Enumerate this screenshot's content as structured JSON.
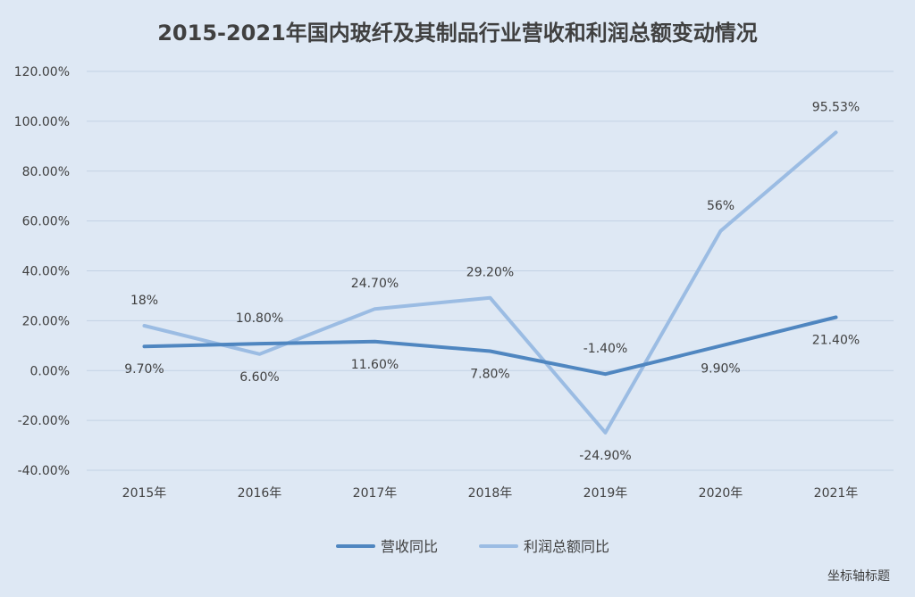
{
  "colors": {
    "background": "#DEE8F4",
    "gridline": "#C3D2E4",
    "text": "#404040",
    "revenue_line": "#4F86C0",
    "profit_line": "#9BBCE3"
  },
  "chart_data": {
    "type": "line",
    "title": "2015-2021年国内玻纤及其制品行业营收和利润总额变动情况",
    "xlabel": "坐标轴标题",
    "ylabel": "",
    "categories": [
      "2015年",
      "2016年",
      "2017年",
      "2018年",
      "2019年",
      "2020年",
      "2021年"
    ],
    "ylim": [
      -40,
      120
    ],
    "yticks": [
      "-40.00%",
      "-20.00%",
      "0.00%",
      "20.00%",
      "40.00%",
      "60.00%",
      "80.00%",
      "100.00%",
      "120.00%"
    ],
    "grid": true,
    "legend_position": "bottom",
    "series": [
      {
        "name": "营收同比",
        "values": [
          9.7,
          10.8,
          11.6,
          7.8,
          -1.4,
          9.9,
          21.4
        ],
        "labels": [
          "9.70%",
          "10.80%",
          "11.60%",
          "7.80%",
          "-1.40%",
          "9.90%",
          "21.40%"
        ]
      },
      {
        "name": "利润总额同比",
        "values": [
          18,
          6.6,
          24.7,
          29.2,
          -24.9,
          56,
          95.53
        ],
        "labels": [
          "18%",
          "6.60%",
          "24.70%",
          "29.20%",
          "-24.90%",
          "56%",
          "95.53%"
        ]
      }
    ]
  }
}
